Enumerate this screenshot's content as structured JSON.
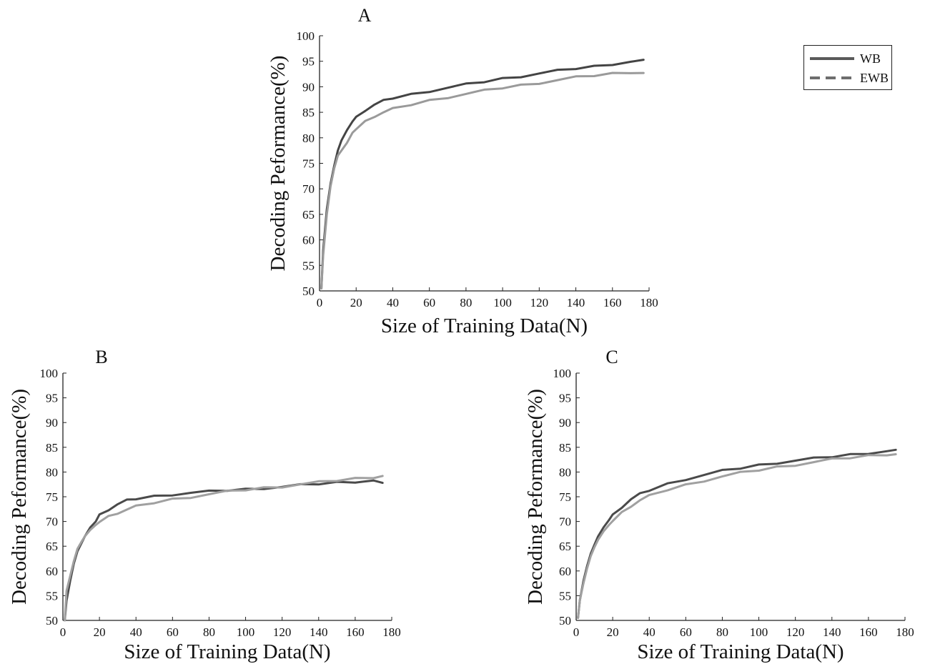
{
  "figure": {
    "legend": {
      "entries": [
        {
          "label": "WB",
          "color": "#5a5a5a",
          "style": "solid"
        },
        {
          "label": "EWB",
          "color": "#6e6e6e",
          "style": "dashed"
        }
      ]
    }
  },
  "chart_data": [
    {
      "type": "line",
      "title": "A",
      "xlabel": "Size of Training Data(N)",
      "ylabel": "Decoding Peformance(%)",
      "xlim": [
        0,
        180
      ],
      "ylim": [
        50,
        100
      ],
      "xticks": [
        0,
        20,
        40,
        60,
        80,
        100,
        120,
        140,
        160,
        180
      ],
      "yticks": [
        50,
        55,
        60,
        65,
        70,
        75,
        80,
        85,
        90,
        95,
        100
      ],
      "grid": false,
      "legend_position": "top-right",
      "series": [
        {
          "name": "WB",
          "color": "#444444",
          "x": [
            1,
            2,
            4,
            6,
            8,
            10,
            12,
            15,
            18,
            20,
            25,
            30,
            35,
            40,
            50,
            60,
            70,
            80,
            90,
            100,
            110,
            120,
            130,
            140,
            150,
            160,
            170,
            177
          ],
          "y": [
            50.5,
            58,
            66,
            71,
            74.5,
            77.5,
            79.5,
            81.5,
            83.2,
            84,
            85.5,
            86.5,
            87.2,
            87.8,
            88.5,
            89.2,
            89.8,
            90.4,
            91,
            91.6,
            92.1,
            92.6,
            93.1,
            93.6,
            94,
            94.5,
            94.9,
            95.3
          ]
        },
        {
          "name": "EWB",
          "color": "#9a9a9a",
          "x": [
            1,
            2,
            4,
            6,
            8,
            10,
            12,
            15,
            18,
            20,
            25,
            30,
            35,
            40,
            50,
            60,
            70,
            80,
            90,
            100,
            110,
            120,
            130,
            140,
            150,
            160,
            170,
            177
          ],
          "y": [
            50.5,
            57,
            65,
            70.5,
            74,
            76.5,
            77.5,
            79,
            81,
            81.8,
            83.2,
            84.3,
            85,
            85.6,
            86.5,
            87.3,
            88,
            88.6,
            89.2,
            89.8,
            90.3,
            90.8,
            91.3,
            91.8,
            92.2,
            92.6,
            92.9,
            92.7
          ]
        }
      ]
    },
    {
      "type": "line",
      "title": "B",
      "xlabel": "Size of Training Data(N)",
      "ylabel": "Decoding Peformance(%)",
      "xlim": [
        0,
        180
      ],
      "ylim": [
        50,
        100
      ],
      "xticks": [
        0,
        20,
        40,
        60,
        80,
        100,
        120,
        140,
        160,
        180
      ],
      "yticks": [
        50,
        55,
        60,
        65,
        70,
        75,
        80,
        85,
        90,
        95,
        100
      ],
      "grid": false,
      "series": [
        {
          "name": "WB",
          "color": "#4a4a4a",
          "x": [
            1,
            2,
            4,
            6,
            8,
            10,
            12,
            15,
            18,
            20,
            25,
            30,
            35,
            40,
            50,
            60,
            70,
            80,
            90,
            100,
            110,
            120,
            130,
            140,
            150,
            160,
            170,
            175
          ],
          "y": [
            50,
            54,
            58,
            61.5,
            64,
            65.5,
            67,
            68.8,
            70,
            71.3,
            72.5,
            73.5,
            74.2,
            74.6,
            75.1,
            75.5,
            75.8,
            76,
            76.3,
            76.5,
            76.8,
            77,
            77.3,
            77.6,
            77.9,
            78.1,
            78.3,
            77.8
          ]
        },
        {
          "name": "EWB",
          "color": "#a0a0a0",
          "x": [
            1,
            2,
            4,
            6,
            8,
            10,
            12,
            15,
            18,
            20,
            25,
            30,
            35,
            40,
            50,
            60,
            70,
            80,
            90,
            100,
            110,
            120,
            130,
            140,
            150,
            160,
            170,
            175
          ],
          "y": [
            50,
            56,
            59,
            62,
            64.5,
            65.8,
            67,
            68.3,
            69.3,
            70,
            71,
            71.8,
            72.4,
            73,
            73.8,
            74.5,
            75,
            75.5,
            76,
            76.4,
            76.8,
            77.1,
            77.5,
            77.9,
            78.3,
            78.7,
            79,
            79.2
          ]
        }
      ]
    },
    {
      "type": "line",
      "title": "C",
      "xlabel": "Size of Training Data(N)",
      "ylabel": "Decoding Peformance(%)",
      "xlim": [
        0,
        180
      ],
      "ylim": [
        50,
        100
      ],
      "xticks": [
        0,
        20,
        40,
        60,
        80,
        100,
        120,
        140,
        160,
        180
      ],
      "yticks": [
        50,
        55,
        60,
        65,
        70,
        75,
        80,
        85,
        90,
        95,
        100
      ],
      "grid": false,
      "series": [
        {
          "name": "WB",
          "color": "#4a4a4a",
          "x": [
            1,
            2,
            4,
            6,
            8,
            10,
            12,
            15,
            18,
            20,
            25,
            30,
            35,
            40,
            50,
            60,
            70,
            80,
            90,
            100,
            110,
            120,
            130,
            140,
            150,
            160,
            170,
            175
          ],
          "y": [
            50.5,
            54,
            58,
            61,
            63.5,
            65.3,
            67,
            68.8,
            70.3,
            71.3,
            73,
            74.5,
            75.5,
            76.3,
            77.6,
            78.6,
            79.4,
            80.2,
            80.8,
            81.4,
            81.9,
            82.3,
            82.7,
            83.1,
            83.5,
            83.9,
            84.2,
            84.5
          ]
        },
        {
          "name": "EWB",
          "color": "#a0a0a0",
          "x": [
            1,
            2,
            4,
            6,
            8,
            10,
            12,
            15,
            18,
            20,
            25,
            30,
            35,
            40,
            50,
            60,
            70,
            80,
            90,
            100,
            110,
            120,
            130,
            140,
            150,
            160,
            170,
            175
          ],
          "y": [
            50.5,
            54,
            57.5,
            60.5,
            63,
            64.8,
            66.3,
            68,
            69.3,
            70.2,
            71.8,
            73.2,
            74.3,
            75.1,
            76.4,
            77.4,
            78.3,
            79.1,
            79.8,
            80.4,
            81,
            81.5,
            82,
            82.5,
            82.9,
            83.3,
            83.6,
            83.6
          ]
        }
      ]
    }
  ]
}
